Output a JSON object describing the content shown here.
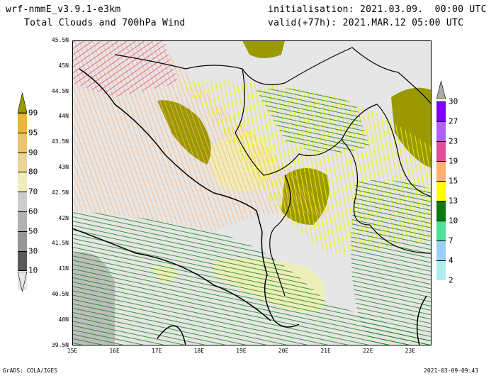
{
  "header": {
    "model": "wrf-nmmE_v3.9.1-e3km",
    "product": "Total Clouds and 700hPa Wind",
    "init": "initialisation: 2021.03.09.  00:00 UTC",
    "valid": "valid(+77h): 2021.MAR.12 05:00 UTC"
  },
  "lat_labels": [
    "45.5N",
    "45N",
    "44.5N",
    "44N",
    "43.5N",
    "43N",
    "42.5N",
    "42N",
    "41.5N",
    "41N",
    "40.5N",
    "40N",
    "39.5N"
  ],
  "lon_labels": [
    "15E",
    "16E",
    "17E",
    "18E",
    "19E",
    "20E",
    "21E",
    "22E",
    "23E"
  ],
  "cloud_legend": {
    "labels": [
      "99",
      "95",
      "90",
      "80",
      "70",
      "60",
      "50",
      "30",
      "10"
    ],
    "colors": [
      "#9a9a00",
      "#e8b830",
      "#eac468",
      "#ecd498",
      "#eeeebb",
      "#cccccc",
      "#b2b2b2",
      "#969696",
      "#5a5a5a",
      "#e6e6e6"
    ]
  },
  "wind_legend": {
    "labels": [
      "30",
      "27",
      "23",
      "19",
      "15",
      "13",
      "10",
      "7",
      "4",
      "2"
    ],
    "colors": [
      "#aaaaaa",
      "#8000ff",
      "#b060f8",
      "#e04c98",
      "#ffb070",
      "#ffff00",
      "#107810",
      "#50e098",
      "#98d0f8",
      "#b0eeee"
    ]
  },
  "footer": {
    "left": "GrADS: COLA/IGES",
    "right": "2021-03-09-09:43"
  }
}
